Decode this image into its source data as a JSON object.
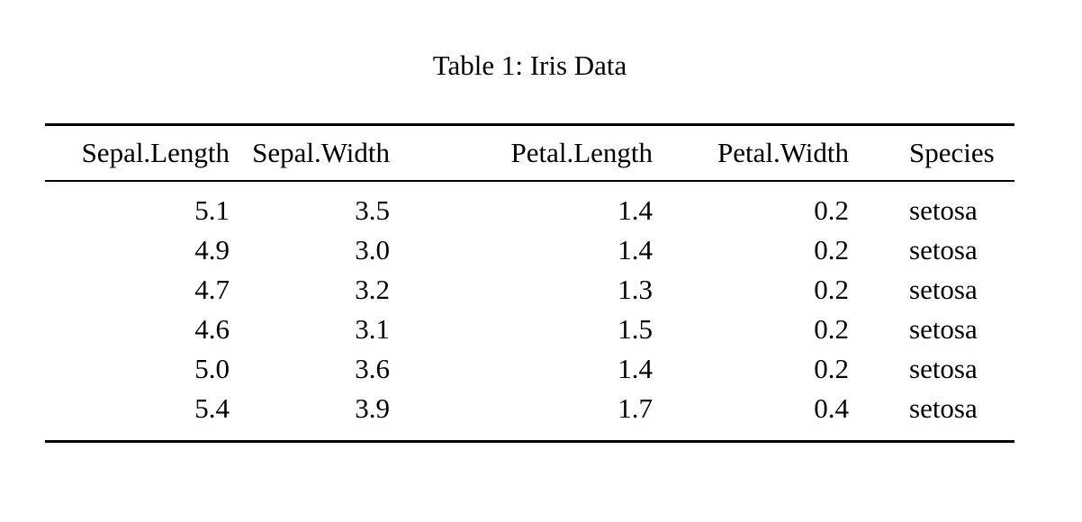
{
  "colors": {
    "text": "#000000",
    "background": "#ffffff",
    "rule": "#000000"
  },
  "table": {
    "caption": "Table 1: Iris Data",
    "columns": [
      "Sepal.Length",
      "Sepal.Width",
      "Petal.Length",
      "Petal.Width",
      "Species"
    ],
    "rows": [
      [
        "5.1",
        "3.5",
        "1.4",
        "0.2",
        "setosa"
      ],
      [
        "4.9",
        "3.0",
        "1.4",
        "0.2",
        "setosa"
      ],
      [
        "4.7",
        "3.2",
        "1.3",
        "0.2",
        "setosa"
      ],
      [
        "4.6",
        "3.1",
        "1.5",
        "0.2",
        "setosa"
      ],
      [
        "5.0",
        "3.6",
        "1.4",
        "0.2",
        "setosa"
      ],
      [
        "5.4",
        "3.9",
        "1.7",
        "0.4",
        "setosa"
      ]
    ]
  }
}
